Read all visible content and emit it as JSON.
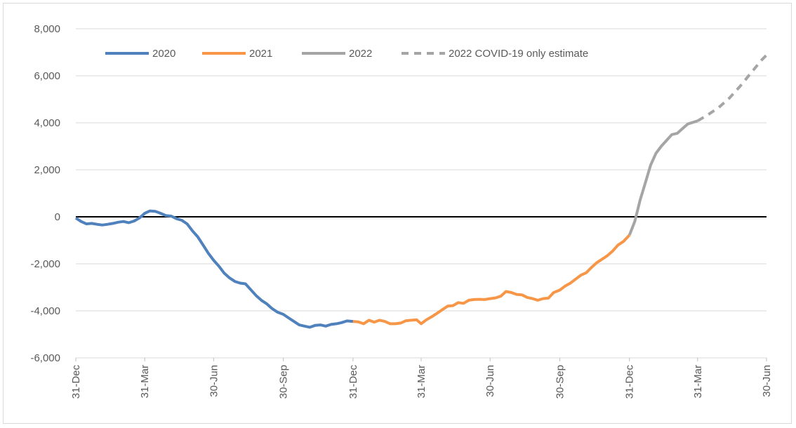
{
  "chart_data": {
    "type": "line",
    "title": "",
    "xlabel": "",
    "ylabel": "",
    "ylim": [
      -6000,
      8000
    ],
    "y_ticks": [
      8000,
      6000,
      4000,
      2000,
      0,
      -2000,
      -4000,
      -6000
    ],
    "y_tick_labels": [
      "8,000",
      "6,000",
      "4,000",
      "2,000",
      "0",
      "-2,000",
      "-4,000",
      "-6,000"
    ],
    "x_ticks": [
      "2019-12-31",
      "2020-03-31",
      "2020-06-30",
      "2020-09-30",
      "2020-12-31",
      "2021-03-31",
      "2021-06-30",
      "2021-09-30",
      "2021-12-31",
      "2022-03-31",
      "2022-06-30"
    ],
    "x_tick_labels": [
      "31-Dec",
      "31-Mar",
      "30-Jun",
      "30-Sep",
      "31-Dec",
      "31-Mar",
      "30-Jun",
      "30-Sep",
      "31-Dec",
      "31-Mar",
      "30-Jun"
    ],
    "xlim": [
      "2019-12-31",
      "2022-06-30"
    ],
    "grid": "horizontal",
    "legend_position": "top",
    "zero_line_color": "#000000",
    "series": [
      {
        "name": "2020",
        "color": "#4f81bd",
        "style": "solid",
        "points": [
          [
            "2019-12-31",
            -50
          ],
          [
            "2020-01-07",
            -200
          ],
          [
            "2020-01-14",
            -300
          ],
          [
            "2020-01-21",
            -280
          ],
          [
            "2020-01-28",
            -320
          ],
          [
            "2020-02-04",
            -350
          ],
          [
            "2020-02-11",
            -320
          ],
          [
            "2020-02-18",
            -280
          ],
          [
            "2020-02-25",
            -230
          ],
          [
            "2020-03-03",
            -200
          ],
          [
            "2020-03-10",
            -250
          ],
          [
            "2020-03-17",
            -180
          ],
          [
            "2020-03-24",
            -50
          ],
          [
            "2020-03-31",
            150
          ],
          [
            "2020-04-07",
            250
          ],
          [
            "2020-04-14",
            230
          ],
          [
            "2020-04-21",
            150
          ],
          [
            "2020-04-28",
            50
          ],
          [
            "2020-05-05",
            30
          ],
          [
            "2020-05-12",
            -80
          ],
          [
            "2020-05-19",
            -150
          ],
          [
            "2020-05-26",
            -300
          ],
          [
            "2020-06-02",
            -600
          ],
          [
            "2020-06-09",
            -850
          ],
          [
            "2020-06-16",
            -1200
          ],
          [
            "2020-06-23",
            -1550
          ],
          [
            "2020-06-30",
            -1850
          ],
          [
            "2020-07-07",
            -2100
          ],
          [
            "2020-07-14",
            -2400
          ],
          [
            "2020-07-21",
            -2600
          ],
          [
            "2020-07-28",
            -2750
          ],
          [
            "2020-08-04",
            -2820
          ],
          [
            "2020-08-11",
            -2850
          ],
          [
            "2020-08-18",
            -3100
          ],
          [
            "2020-08-25",
            -3350
          ],
          [
            "2020-09-01",
            -3550
          ],
          [
            "2020-09-08",
            -3700
          ],
          [
            "2020-09-15",
            -3900
          ],
          [
            "2020-09-22",
            -4050
          ],
          [
            "2020-09-30",
            -4150
          ],
          [
            "2020-10-07",
            -4300
          ],
          [
            "2020-10-14",
            -4450
          ],
          [
            "2020-10-21",
            -4600
          ],
          [
            "2020-10-28",
            -4650
          ],
          [
            "2020-11-04",
            -4700
          ],
          [
            "2020-11-11",
            -4620
          ],
          [
            "2020-11-18",
            -4600
          ],
          [
            "2020-11-25",
            -4650
          ],
          [
            "2020-12-02",
            -4580
          ],
          [
            "2020-12-09",
            -4550
          ],
          [
            "2020-12-16",
            -4500
          ],
          [
            "2020-12-23",
            -4430
          ],
          [
            "2020-12-31",
            -4450
          ]
        ]
      },
      {
        "name": "2021",
        "color": "#f79646",
        "style": "solid",
        "points": [
          [
            "2020-12-31",
            -4450
          ],
          [
            "2021-01-07",
            -4470
          ],
          [
            "2021-01-14",
            -4550
          ],
          [
            "2021-01-21",
            -4400
          ],
          [
            "2021-01-28",
            -4480
          ],
          [
            "2021-02-04",
            -4400
          ],
          [
            "2021-02-11",
            -4450
          ],
          [
            "2021-02-18",
            -4550
          ],
          [
            "2021-02-25",
            -4550
          ],
          [
            "2021-03-04",
            -4520
          ],
          [
            "2021-03-11",
            -4420
          ],
          [
            "2021-03-18",
            -4400
          ],
          [
            "2021-03-25",
            -4380
          ],
          [
            "2021-03-31",
            -4550
          ],
          [
            "2021-04-07",
            -4380
          ],
          [
            "2021-04-14",
            -4250
          ],
          [
            "2021-04-21",
            -4100
          ],
          [
            "2021-04-28",
            -3950
          ],
          [
            "2021-05-05",
            -3800
          ],
          [
            "2021-05-12",
            -3780
          ],
          [
            "2021-05-19",
            -3650
          ],
          [
            "2021-05-26",
            -3680
          ],
          [
            "2021-06-02",
            -3550
          ],
          [
            "2021-06-09",
            -3520
          ],
          [
            "2021-06-16",
            -3510
          ],
          [
            "2021-06-23",
            -3520
          ],
          [
            "2021-06-30",
            -3480
          ],
          [
            "2021-07-07",
            -3450
          ],
          [
            "2021-07-14",
            -3380
          ],
          [
            "2021-07-21",
            -3180
          ],
          [
            "2021-07-28",
            -3220
          ],
          [
            "2021-08-04",
            -3300
          ],
          [
            "2021-08-11",
            -3320
          ],
          [
            "2021-08-18",
            -3430
          ],
          [
            "2021-08-25",
            -3480
          ],
          [
            "2021-09-01",
            -3550
          ],
          [
            "2021-09-08",
            -3480
          ],
          [
            "2021-09-15",
            -3460
          ],
          [
            "2021-09-22",
            -3220
          ],
          [
            "2021-09-30",
            -3120
          ],
          [
            "2021-10-07",
            -2950
          ],
          [
            "2021-10-14",
            -2820
          ],
          [
            "2021-10-21",
            -2650
          ],
          [
            "2021-10-28",
            -2480
          ],
          [
            "2021-11-04",
            -2380
          ],
          [
            "2021-11-11",
            -2150
          ],
          [
            "2021-11-18",
            -1950
          ],
          [
            "2021-11-25",
            -1800
          ],
          [
            "2021-12-02",
            -1650
          ],
          [
            "2021-12-09",
            -1450
          ],
          [
            "2021-12-16",
            -1200
          ],
          [
            "2021-12-23",
            -1050
          ],
          [
            "2021-12-31",
            -780
          ]
        ]
      },
      {
        "name": "2022",
        "color": "#a5a5a5",
        "style": "solid",
        "points": [
          [
            "2021-12-31",
            -780
          ],
          [
            "2022-01-07",
            -200
          ],
          [
            "2022-01-14",
            700
          ],
          [
            "2022-01-21",
            1450
          ],
          [
            "2022-01-28",
            2200
          ],
          [
            "2022-02-04",
            2700
          ],
          [
            "2022-02-11",
            3000
          ],
          [
            "2022-02-18",
            3250
          ],
          [
            "2022-02-25",
            3500
          ],
          [
            "2022-03-04",
            3550
          ],
          [
            "2022-03-11",
            3750
          ],
          [
            "2022-03-18",
            3950
          ],
          [
            "2022-03-31",
            4080
          ]
        ]
      },
      {
        "name": "2022 COVID-19 only estimate",
        "color": "#a5a5a5",
        "style": "dashed",
        "points": [
          [
            "2022-03-31",
            4080
          ],
          [
            "2022-04-14",
            4350
          ],
          [
            "2022-04-28",
            4650
          ],
          [
            "2022-05-12",
            5050
          ],
          [
            "2022-05-26",
            5550
          ],
          [
            "2022-06-09",
            6100
          ],
          [
            "2022-06-23",
            6650
          ],
          [
            "2022-06-30",
            6880
          ]
        ]
      }
    ]
  }
}
